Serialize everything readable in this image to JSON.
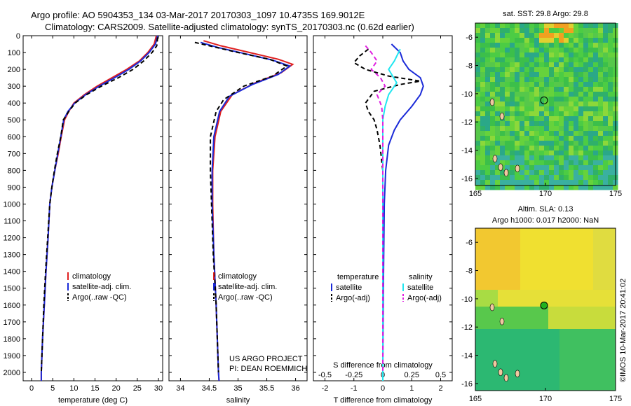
{
  "header": {
    "line1": "Argo profile: AO 5904353_134 03-Mar-2017 20170303_1097 10.4735S 169.9012E",
    "line2": "Climatology: CARS2009. Satellite-adjusted climatology: synTS_20170303.nc (0.62d earlier)"
  },
  "colors": {
    "climatology": "#e02020",
    "satellite": "#1a2ad8",
    "argo": "#000000",
    "cyan": "#20e6f0",
    "magenta": "#e020e0"
  },
  "chart_data": [
    {
      "id": "temperature",
      "type": "line",
      "xlabel": "temperature (deg C)",
      "ylabel": "",
      "xlim": [
        -2,
        31
      ],
      "ylim": [
        2050,
        0
      ],
      "xticks": [
        0,
        5,
        10,
        15,
        20,
        25,
        30
      ],
      "yticks": [
        0,
        100,
        200,
        300,
        400,
        500,
        600,
        700,
        800,
        900,
        1000,
        1100,
        1200,
        1300,
        1400,
        1500,
        1600,
        1700,
        1800,
        1900,
        2000
      ],
      "legend": [
        "climatology",
        "satellite-adj. clim.",
        "Argo(..raw -QC)"
      ],
      "series": [
        {
          "name": "climatology",
          "color": "climatology",
          "dash": "",
          "points": [
            [
              29.5,
              0
            ],
            [
              29.0,
              50
            ],
            [
              27.5,
              100
            ],
            [
              25.5,
              150
            ],
            [
              22.5,
              200
            ],
            [
              19.0,
              250
            ],
            [
              15.5,
              300
            ],
            [
              12.5,
              350
            ],
            [
              10.0,
              400
            ],
            [
              8.8,
              450
            ],
            [
              7.8,
              500
            ],
            [
              7.0,
              600
            ],
            [
              6.3,
              700
            ],
            [
              5.5,
              800
            ],
            [
              4.8,
              900
            ],
            [
              4.3,
              1000
            ],
            [
              3.9,
              1200
            ],
            [
              3.4,
              1400
            ],
            [
              3.0,
              1600
            ],
            [
              2.6,
              1800
            ],
            [
              2.3,
              2000
            ],
            [
              2.3,
              2050
            ]
          ]
        },
        {
          "name": "satellite-adj. clim.",
          "color": "satellite",
          "dash": "",
          "points": [
            [
              29.8,
              0
            ],
            [
              29.3,
              50
            ],
            [
              27.8,
              100
            ],
            [
              25.8,
              150
            ],
            [
              23.0,
              200
            ],
            [
              19.6,
              250
            ],
            [
              16.0,
              300
            ],
            [
              12.8,
              350
            ],
            [
              10.2,
              400
            ],
            [
              8.6,
              450
            ],
            [
              7.6,
              500
            ],
            [
              6.9,
              600
            ],
            [
              6.2,
              700
            ],
            [
              5.5,
              800
            ],
            [
              4.8,
              900
            ],
            [
              4.3,
              1000
            ],
            [
              3.9,
              1200
            ],
            [
              3.4,
              1400
            ],
            [
              3.0,
              1600
            ],
            [
              2.6,
              1800
            ],
            [
              2.3,
              2000
            ],
            [
              2.3,
              2050
            ]
          ]
        },
        {
          "name": "Argo(..raw -QC)",
          "color": "argo",
          "dash": "6,4",
          "points": [
            [
              29.8,
              10
            ],
            [
              29.6,
              60
            ],
            [
              28.5,
              100
            ],
            [
              26.5,
              150
            ],
            [
              24.0,
              200
            ],
            [
              20.5,
              250
            ],
            [
              16.5,
              300
            ],
            [
              13.0,
              350
            ],
            [
              10.3,
              400
            ],
            [
              8.8,
              450
            ],
            [
              7.5,
              500
            ],
            [
              6.9,
              600
            ],
            [
              6.1,
              700
            ],
            [
              5.4,
              800
            ],
            [
              4.8,
              900
            ],
            [
              4.3,
              1000
            ],
            [
              3.8,
              1200
            ],
            [
              3.3,
              1400
            ],
            [
              2.9,
              1600
            ],
            [
              2.6,
              1800
            ],
            [
              2.3,
              2000
            ]
          ]
        }
      ]
    },
    {
      "id": "salinity",
      "type": "line",
      "xlabel": "salinity",
      "ylabel": "",
      "xlim": [
        33.8,
        36.2
      ],
      "ylim": [
        2050,
        0
      ],
      "xticks": [
        34,
        34.5,
        35,
        35.5,
        36
      ],
      "legend": [
        "climatology",
        "satellite-adj. clim.",
        "Argo(..raw -QC)"
      ],
      "series": [
        {
          "name": "climatology",
          "color": "climatology",
          "dash": "",
          "points": [
            [
              34.4,
              30
            ],
            [
              34.7,
              60
            ],
            [
              35.2,
              100
            ],
            [
              35.7,
              140
            ],
            [
              35.95,
              170
            ],
            [
              35.75,
              220
            ],
            [
              35.3,
              280
            ],
            [
              34.9,
              350
            ],
            [
              34.7,
              450
            ],
            [
              34.6,
              600
            ],
            [
              34.56,
              800
            ],
            [
              34.56,
              1000
            ],
            [
              34.58,
              1300
            ],
            [
              34.62,
              1600
            ],
            [
              34.66,
              2000
            ],
            [
              34.67,
              2050
            ]
          ]
        },
        {
          "name": "satellite-adj. clim.",
          "color": "satellite",
          "dash": "",
          "points": [
            [
              34.35,
              40
            ],
            [
              34.65,
              70
            ],
            [
              35.1,
              105
            ],
            [
              35.6,
              145
            ],
            [
              35.9,
              180
            ],
            [
              35.7,
              230
            ],
            [
              35.25,
              290
            ],
            [
              34.85,
              360
            ],
            [
              34.68,
              450
            ],
            [
              34.58,
              600
            ],
            [
              34.55,
              800
            ],
            [
              34.55,
              1000
            ],
            [
              34.58,
              1300
            ],
            [
              34.62,
              1600
            ],
            [
              34.66,
              2000
            ],
            [
              34.67,
              2050
            ]
          ]
        },
        {
          "name": "Argo(..raw -QC)",
          "color": "argo",
          "dash": "6,4",
          "points": [
            [
              34.25,
              40
            ],
            [
              34.5,
              60
            ],
            [
              35.0,
              100
            ],
            [
              35.55,
              140
            ],
            [
              35.85,
              180
            ],
            [
              35.6,
              240
            ],
            [
              35.1,
              300
            ],
            [
              34.75,
              380
            ],
            [
              34.62,
              450
            ],
            [
              34.52,
              600
            ],
            [
              34.52,
              800
            ],
            [
              34.54,
              1000
            ],
            [
              34.57,
              1300
            ],
            [
              34.62,
              1600
            ],
            [
              34.66,
              2000
            ]
          ]
        }
      ]
    },
    {
      "id": "differences",
      "type": "line",
      "xlabel": "T difference from climatology",
      "ylabel": "",
      "xlim": [
        -2.4,
        2.4
      ],
      "ylim": [
        2050,
        0
      ],
      "xticks": [
        -2,
        -1,
        0,
        1,
        2
      ],
      "xticklabels": [
        "-2",
        "-1",
        "0",
        "1",
        "2"
      ],
      "top_xlabel": "S difference from climatology",
      "top_ticks": [
        -0.5,
        -0.25,
        0,
        0.25,
        0.5
      ],
      "top_ticklabels": [
        "-0.5",
        "-0.25",
        "0",
        "0.25",
        "0.5"
      ],
      "s_scale": 4,
      "legend_headers": [
        "temperature",
        "salinity"
      ],
      "legend": [
        "satellite",
        "Argo(-adj)",
        "satellite",
        "Argo(-adj)"
      ],
      "series": [
        {
          "name": "T satellite",
          "color": "satellite",
          "dash": "",
          "points": [
            [
              0.3,
              50
            ],
            [
              0.6,
              100
            ],
            [
              0.7,
              150
            ],
            [
              0.9,
              200
            ],
            [
              1.3,
              250
            ],
            [
              1.4,
              300
            ],
            [
              1.3,
              350
            ],
            [
              1.0,
              420
            ],
            [
              0.6,
              500
            ],
            [
              0.4,
              560
            ],
            [
              0.2,
              650
            ],
            [
              0.1,
              800
            ],
            [
              0.05,
              1000
            ],
            [
              0.02,
              1500
            ],
            [
              0.0,
              2000
            ],
            [
              0.0,
              2050
            ]
          ]
        },
        {
          "name": "T Argo(-adj)",
          "color": "argo",
          "dash": "6,4",
          "points": [
            [
              -0.5,
              80
            ],
            [
              -0.8,
              120
            ],
            [
              -1.0,
              160
            ],
            [
              -0.6,
              200
            ],
            [
              0.2,
              240
            ],
            [
              1.3,
              270
            ],
            [
              0.6,
              290
            ],
            [
              -0.3,
              330
            ],
            [
              -0.6,
              400
            ],
            [
              -0.5,
              450
            ],
            [
              -0.3,
              500
            ],
            [
              -0.2,
              560
            ],
            [
              -0.1,
              650
            ],
            [
              0.0,
              800
            ],
            [
              0.0,
              1000
            ],
            [
              0.0,
              1500
            ],
            [
              0.0,
              2000
            ]
          ]
        },
        {
          "name": "S satellite",
          "color": "cyan",
          "dash": "",
          "points": [
            [
              0.15,
              80
            ],
            [
              0.1,
              150
            ],
            [
              0.05,
              200
            ],
            [
              0.12,
              280
            ],
            [
              0.05,
              350
            ],
            [
              0.02,
              420
            ],
            [
              0.0,
              500
            ],
            [
              0.0,
              700
            ],
            [
              0.0,
              1000
            ],
            [
              0.0,
              1500
            ],
            [
              0.0,
              2050
            ]
          ]
        },
        {
          "name": "S Argo(-adj)",
          "color": "magenta",
          "dash": "6,4",
          "points": [
            [
              -0.15,
              60
            ],
            [
              -0.1,
              100
            ],
            [
              -0.05,
              150
            ],
            [
              -0.1,
              200
            ],
            [
              -0.02,
              250
            ],
            [
              0.02,
              300
            ],
            [
              -0.05,
              350
            ],
            [
              -0.01,
              420
            ],
            [
              0.0,
              500
            ],
            [
              0.0,
              700
            ],
            [
              0.0,
              1000
            ],
            [
              0.0,
              1500
            ],
            [
              0.0,
              2000
            ]
          ]
        }
      ]
    },
    {
      "id": "sst-map",
      "type": "heatmap",
      "title": "sat. SST: 29.8 Argo: 29.8",
      "xlim": [
        165,
        175
      ],
      "ylim": [
        -16.5,
        -5
      ],
      "xticks": [
        165,
        170,
        175
      ],
      "yticks": [
        -6,
        -8,
        -10,
        -12,
        -14,
        -16
      ],
      "float_position": [
        169.9,
        -10.47
      ]
    },
    {
      "id": "sla-map",
      "type": "heatmap",
      "title": "Altim. SLA: 0.13",
      "subtitle": "Argo h1000: 0.017 h2000: NaN",
      "xlim": [
        165,
        175
      ],
      "ylim": [
        -16.5,
        -5
      ],
      "xticks": [
        165,
        170,
        175
      ],
      "yticks": [
        -6,
        -8,
        -10,
        -12,
        -14,
        -16
      ],
      "float_position": [
        169.9,
        -10.47
      ]
    }
  ],
  "credits": {
    "project": "US ARGO PROJECT",
    "pi": "PI: DEAN ROEMMICH",
    "stamp": "©IMOS 10-Mar-2017 20:41:02"
  }
}
